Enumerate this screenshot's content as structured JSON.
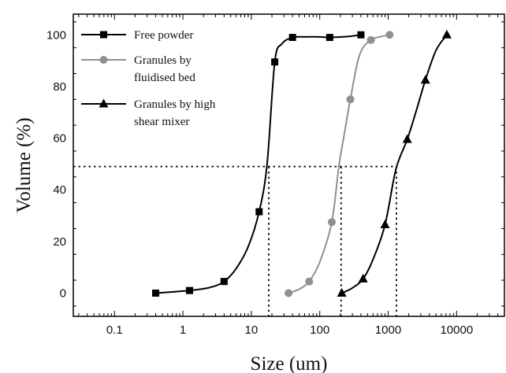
{
  "chart_data": {
    "type": "line",
    "x_scale": "log",
    "xlim": [
      0.025,
      50000
    ],
    "ylim": [
      -9,
      108
    ],
    "xlabel": "Size  (um)",
    "ylabel": "Volume  (%)",
    "x_ticks": [
      {
        "value": 0.1,
        "label": "0.1"
      },
      {
        "value": 1,
        "label": "1"
      },
      {
        "value": 10,
        "label": "10"
      },
      {
        "value": 100,
        "label": "100"
      },
      {
        "value": 1000,
        "label": "1000"
      },
      {
        "value": 10000,
        "label": "10000"
      }
    ],
    "y_ticks": [
      {
        "value": 0,
        "label": "0"
      },
      {
        "value": 20,
        "label": "20"
      },
      {
        "value": 40,
        "label": "40"
      },
      {
        "value": 60,
        "label": "60"
      },
      {
        "value": 80,
        "label": "80"
      },
      {
        "value": 100,
        "label": "100"
      }
    ],
    "grid": false,
    "legend_position": "top-left",
    "series": [
      {
        "name": "Free powder",
        "marker": "square",
        "color": "#000000",
        "x": [
          0.4,
          1.25,
          4,
          13,
          22,
          40,
          140,
          400
        ],
        "y": [
          0,
          1,
          4.5,
          31.5,
          89.5,
          99,
          99,
          100
        ],
        "curve_x": [
          0.4,
          1.25,
          2.5,
          4,
          6,
          9,
          13,
          17,
          22,
          28,
          40,
          60,
          100,
          140,
          250,
          400
        ],
        "curve_y": [
          0,
          1,
          2.2,
          4.5,
          9.5,
          18,
          31.5,
          50,
          89.5,
          96.5,
          99,
          99.2,
          99.2,
          99,
          99.3,
          100
        ]
      },
      {
        "name": "Granules by fluidised bed",
        "marker": "circle",
        "color": "#909090",
        "x": [
          35,
          70,
          150,
          280,
          560,
          1050
        ],
        "y": [
          0,
          4.5,
          27.5,
          75,
          98,
          100
        ],
        "curve_x": [
          35,
          50,
          70,
          100,
          150,
          190,
          230,
          280,
          380,
          560,
          1050
        ],
        "curve_y": [
          0,
          1.5,
          4.5,
          12,
          27.5,
          49,
          62,
          75,
          92,
          98,
          100
        ],
        "label_lines": [
          "Granules by",
          "fluidised bed"
        ]
      },
      {
        "name": "Granules by high shear mixer",
        "marker": "triangle",
        "color": "#000000",
        "x": [
          210,
          430,
          900,
          1900,
          3500,
          7200
        ],
        "y": [
          0,
          5.5,
          26.5,
          59.5,
          82.5,
          100
        ],
        "curve_x": [
          210,
          300,
          430,
          600,
          900,
          1300,
          1900,
          2600,
          3500,
          5000,
          7200
        ],
        "curve_y": [
          0,
          2,
          5.5,
          13,
          26.5,
          48,
          59.5,
          71,
          82.5,
          94,
          100
        ],
        "label_lines": [
          "Granules by high",
          "shear mixer"
        ]
      }
    ],
    "reference_lines": {
      "horizontal_y": 49,
      "x_start": 0.025,
      "x_end": 1320,
      "vertical_x": [
        18,
        205,
        1320
      ]
    }
  }
}
